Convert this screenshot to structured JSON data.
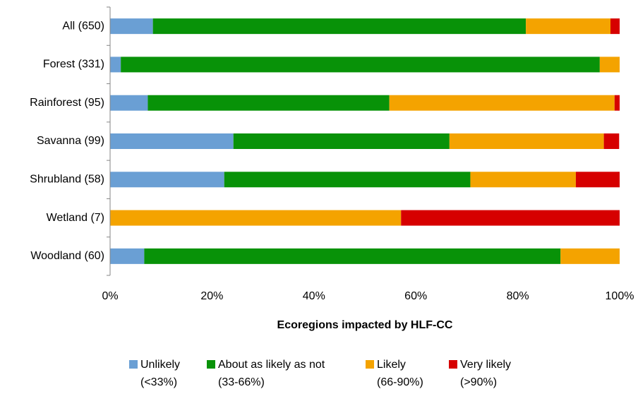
{
  "chart_data": {
    "type": "bar",
    "orientation": "horizontal",
    "stacked": true,
    "x_label": "Ecoregions impacted by HLF-CC",
    "categories": [
      "All (650)",
      "Forest (331)",
      "Rainforest (95)",
      "Savanna (99)",
      "Shrubland (58)",
      "Wetland (7)",
      "Woodland (60)"
    ],
    "series": [
      {
        "name": "Unlikely",
        "range": "(<33%)",
        "color": "#6a9fd4",
        "values": [
          8.4,
          2.1,
          7.4,
          24.2,
          22.4,
          0,
          6.7
        ]
      },
      {
        "name": "About as likely as not",
        "range": "(33-66%)",
        "color": "#089208",
        "values": [
          73.2,
          94.0,
          47.4,
          42.4,
          48.3,
          0,
          81.7
        ]
      },
      {
        "name": "Likely",
        "range": "(66-90%)",
        "color": "#f4a300",
        "values": [
          16.6,
          3.9,
          44.2,
          30.3,
          20.7,
          57.1,
          11.6
        ]
      },
      {
        "name": "Very likely",
        "range": "(>90%)",
        "color": "#d60000",
        "values": [
          1.8,
          0,
          1.0,
          3.0,
          8.6,
          42.9,
          0
        ]
      }
    ],
    "xlim": [
      0,
      100
    ],
    "xticks": [
      {
        "value": 0,
        "label": "0%"
      },
      {
        "value": 20,
        "label": "20%"
      },
      {
        "value": 40,
        "label": "40%"
      },
      {
        "value": 60,
        "label": "60%"
      },
      {
        "value": 80,
        "label": "80%"
      },
      {
        "value": 100,
        "label": "100%"
      }
    ],
    "grid": false,
    "legend": "bottom"
  }
}
